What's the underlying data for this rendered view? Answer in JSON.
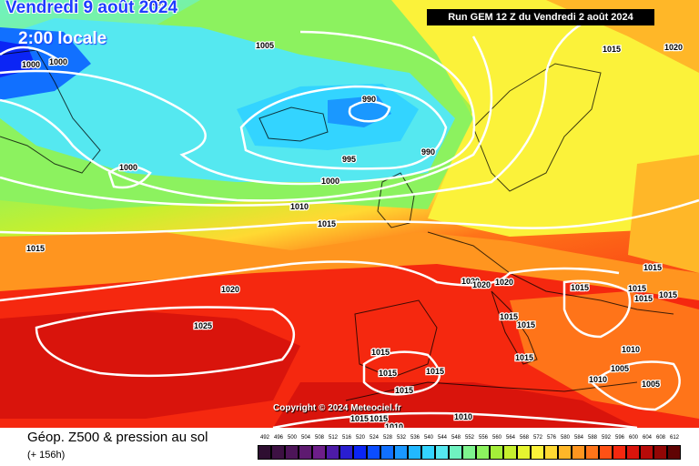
{
  "header": {
    "date": "Vendredi 9 août 2024",
    "time": "2:00 locale",
    "run": "Run GEM 12 Z du Vendredi 2 août 2024"
  },
  "copyright": "Copyright © 2024 Meteociel.fr",
  "legend": {
    "title": "Géop. Z500 & pression au sol",
    "subtitle": "(+ 156h)",
    "values": [
      "492",
      "496",
      "500",
      "504",
      "508",
      "512",
      "516",
      "520",
      "524",
      "528",
      "532",
      "536",
      "540",
      "544",
      "548",
      "552",
      "556",
      "560",
      "564",
      "568",
      "572",
      "576",
      "580",
      "584",
      "588",
      "592",
      "596",
      "600",
      "604",
      "608",
      "612"
    ],
    "colors": [
      "#2e0e31",
      "#3d1143",
      "#4d1559",
      "#5e1a70",
      "#6d1e89",
      "#4d1ba8",
      "#2a1ed0",
      "#0b25f5",
      "#0b4dff",
      "#1170ff",
      "#1a98ff",
      "#22b8ff",
      "#33d4ff",
      "#55e8f0",
      "#6ff2c0",
      "#7ef48e",
      "#8cf25f",
      "#a4ee39",
      "#c6f02e",
      "#e6f530",
      "#fbf23a",
      "#ffd932",
      "#ffb728",
      "#ff951f",
      "#ff7419",
      "#ff5115",
      "#f5280f",
      "#d9140c",
      "#b80b09",
      "#930605",
      "#600303"
    ]
  },
  "isobar_labels": [
    {
      "id": "l1010-top",
      "text": "1010"
    },
    {
      "id": "l1005-n",
      "text": "1005"
    },
    {
      "id": "l1000-a",
      "text": "1000"
    },
    {
      "id": "l1000-b",
      "text": "1000"
    },
    {
      "id": "l990-a",
      "text": "990"
    },
    {
      "id": "l995",
      "text": "995"
    },
    {
      "id": "l990-b",
      "text": "990"
    },
    {
      "id": "l1000-c",
      "text": "1000"
    },
    {
      "id": "l1000-d",
      "text": "1000"
    },
    {
      "id": "l1010-mid",
      "text": "1010"
    },
    {
      "id": "l1015-mid",
      "text": "1015"
    },
    {
      "id": "l1015-ne",
      "text": "1015"
    },
    {
      "id": "l1020-ne",
      "text": "1020"
    },
    {
      "id": "l1015-w",
      "text": "1015"
    },
    {
      "id": "l1020-atl",
      "text": "1020"
    },
    {
      "id": "l1025-atl",
      "text": "1025"
    },
    {
      "id": "l1020-fr1",
      "text": "1020"
    },
    {
      "id": "l1020-fr2",
      "text": "1020"
    },
    {
      "id": "l1020-fr3",
      "text": "1020"
    },
    {
      "id": "l1015-e1",
      "text": "1015"
    },
    {
      "id": "l1015-e2",
      "text": "1015"
    },
    {
      "id": "l1015-e3",
      "text": "1015"
    },
    {
      "id": "l1015-e4",
      "text": "1015"
    },
    {
      "id": "l1015-e5",
      "text": "1015"
    },
    {
      "id": "l1015-it1",
      "text": "1015"
    },
    {
      "id": "l1015-it2",
      "text": "1015"
    },
    {
      "id": "l1015-it3",
      "text": "1015"
    },
    {
      "id": "l1015-bal",
      "text": "1015"
    },
    {
      "id": "l1015-sp1",
      "text": "1015"
    },
    {
      "id": "l1015-sp2",
      "text": "1015"
    },
    {
      "id": "l1015-sp3",
      "text": "1015"
    },
    {
      "id": "l1015-sp4",
      "text": "1015"
    },
    {
      "id": "l1010-tr",
      "text": "1010"
    },
    {
      "id": "l1005-tr",
      "text": "1005"
    },
    {
      "id": "l1010-se",
      "text": "1010"
    },
    {
      "id": "l1005-se",
      "text": "1005"
    },
    {
      "id": "l1015-af",
      "text": "1015"
    },
    {
      "id": "l1010-af1",
      "text": "1010"
    },
    {
      "id": "l1010-af2",
      "text": "1010"
    }
  ]
}
